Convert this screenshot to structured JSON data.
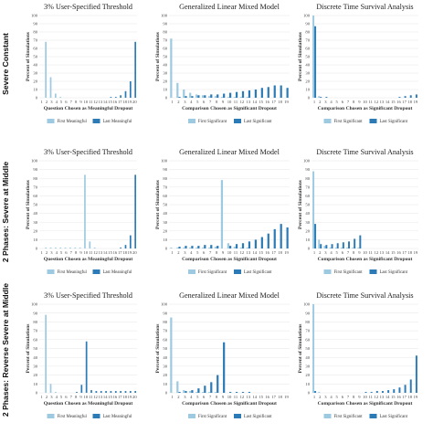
{
  "colors": {
    "first": "#9ecae1",
    "last": "#2c7bb6",
    "grid": "#e6e6e6"
  },
  "rows": [
    "Severe Constant",
    "2 Phases: Severe at Middle",
    "2 Phases: Reverse Severe at Middle"
  ],
  "chart_data": [
    {
      "type": "bar",
      "title": "3% User-Specified Threshold",
      "xlabel": "Question Chosen as Meaningful Dropout",
      "ylabel": "Percent of Simulations",
      "categories": [
        "1",
        "2",
        "3",
        "4",
        "5",
        "6",
        "7",
        "8",
        "9",
        "10",
        "11",
        "12",
        "13",
        "14",
        "15",
        "16",
        "17",
        "18",
        "19",
        "20"
      ],
      "ylim": [
        0,
        100
      ],
      "yticks": [
        "0",
        "10",
        "20",
        "30",
        "40",
        "50",
        "60",
        "70",
        "80",
        "90",
        "100"
      ],
      "series": [
        {
          "name": "First Meaningful",
          "values": [
            0,
            68,
            25,
            5,
            1,
            0,
            0,
            0,
            0,
            0,
            0,
            0,
            0,
            0,
            0,
            0,
            0,
            0,
            0,
            0
          ]
        },
        {
          "name": "Last Meaningful",
          "values": [
            0,
            0,
            0,
            0,
            0,
            0,
            0,
            0,
            0,
            0,
            0,
            0,
            0,
            0,
            1,
            1,
            3,
            8,
            20,
            68
          ]
        }
      ]
    },
    {
      "type": "bar",
      "title": "Generalized Linear Mixed Model",
      "xlabel": "Comparison Chosen as Significant Dropout",
      "ylabel": "Percent of Simulations",
      "categories": [
        "1",
        "2",
        "3",
        "4",
        "5",
        "6",
        "7",
        "8",
        "9",
        "10",
        "11",
        "12",
        "13",
        "14",
        "15",
        "16",
        "17",
        "18",
        "19"
      ],
      "ylim": [
        0,
        100
      ],
      "yticks": [
        "0",
        "10",
        "20",
        "30",
        "40",
        "50",
        "60",
        "70",
        "80",
        "90",
        "100"
      ],
      "series": [
        {
          "name": "First Significant",
          "values": [
            72,
            18,
            10,
            6,
            4,
            3,
            2,
            2,
            1,
            1,
            1,
            1,
            1,
            0,
            0,
            0,
            0,
            0,
            0
          ]
        },
        {
          "name": "Last Significant",
          "values": [
            0,
            1,
            2,
            2,
            3,
            3,
            4,
            4,
            5,
            6,
            7,
            8,
            9,
            10,
            12,
            13,
            15,
            15,
            12
          ]
        }
      ]
    },
    {
      "type": "bar",
      "title": "Discrete Time Survival Analysis",
      "xlabel": "Comparison Chosen as Significant Dropout",
      "ylabel": "Percent of Simulations",
      "categories": [
        "1",
        "2",
        "3",
        "4",
        "5",
        "6",
        "7",
        "8",
        "9",
        "10",
        "11",
        "12",
        "13",
        "14",
        "15",
        "16",
        "17",
        "18",
        "19"
      ],
      "ylim": [
        0,
        100
      ],
      "yticks": [
        "0",
        "10",
        "20",
        "30",
        "40",
        "50",
        "60",
        "70",
        "80",
        "90",
        "100"
      ],
      "series": [
        {
          "name": "First Significant",
          "values": [
            100,
            2,
            0,
            0,
            0,
            0,
            0,
            0,
            0,
            0,
            0,
            0,
            0,
            0,
            0,
            0,
            0,
            0,
            0
          ]
        },
        {
          "name": "Last Significant",
          "values": [
            87,
            1,
            1,
            0,
            0,
            0,
            0,
            0,
            0,
            0,
            0,
            0,
            0,
            0,
            0,
            1,
            2,
            3,
            4
          ]
        }
      ]
    },
    {
      "type": "bar",
      "title": "3% User-Specified Threshold",
      "xlabel": "Question Chosen as Meaningful Dropout",
      "ylabel": "Percent of Simulations",
      "categories": [
        "1",
        "2",
        "3",
        "4",
        "5",
        "6",
        "7",
        "8",
        "9",
        "10",
        "11",
        "12",
        "13",
        "14",
        "15",
        "16",
        "17",
        "18",
        "19",
        "20"
      ],
      "ylim": [
        0,
        100
      ],
      "yticks": [
        "0",
        "10",
        "20",
        "30",
        "40",
        "50",
        "60",
        "70",
        "80",
        "90",
        "100"
      ],
      "series": [
        {
          "name": "First Meaningful",
          "values": [
            0,
            1,
            1,
            1,
            1,
            1,
            1,
            1,
            1,
            84,
            8,
            1,
            0,
            0,
            0,
            0,
            0,
            0,
            0,
            0
          ]
        },
        {
          "name": "Last Meaningful",
          "values": [
            0,
            0,
            0,
            0,
            0,
            0,
            0,
            0,
            0,
            0,
            0,
            0,
            0,
            0,
            0,
            0,
            1,
            4,
            15,
            84
          ]
        }
      ]
    },
    {
      "type": "bar",
      "title": "Generalized Linear Mixed Model",
      "xlabel": "Comparison Chosen as Significant Dropout",
      "ylabel": "Percent of Simulations",
      "categories": [
        "1",
        "2",
        "3",
        "4",
        "5",
        "6",
        "7",
        "8",
        "9",
        "10",
        "11",
        "12",
        "13",
        "14",
        "15",
        "16",
        "17",
        "18",
        "19"
      ],
      "ylim": [
        0,
        100
      ],
      "yticks": [
        "0",
        "10",
        "20",
        "30",
        "40",
        "50",
        "60",
        "70",
        "80",
        "90",
        "100"
      ],
      "series": [
        {
          "name": "First Significant",
          "values": [
            1,
            1,
            1,
            1,
            1,
            1,
            1,
            2,
            78,
            6,
            2,
            1,
            1,
            0,
            0,
            0,
            0,
            0,
            0
          ]
        },
        {
          "name": "Last Significant",
          "values": [
            0,
            2,
            3,
            3,
            3,
            4,
            4,
            3,
            0,
            3,
            5,
            6,
            8,
            10,
            13,
            17,
            22,
            28,
            24
          ]
        }
      ]
    },
    {
      "type": "bar",
      "title": "Discrete Time Survival Analysis",
      "xlabel": "Comparison Chosen as Significant Dropout",
      "ylabel": "Percent of Simulations",
      "categories": [
        "1",
        "2",
        "3",
        "4",
        "5",
        "6",
        "7",
        "8",
        "9",
        "10",
        "11",
        "12",
        "13",
        "14",
        "15",
        "16",
        "17",
        "18",
        "19"
      ],
      "ylim": [
        0,
        100
      ],
      "yticks": [
        "0",
        "10",
        "20",
        "30",
        "40",
        "50",
        "60",
        "70",
        "80",
        "90",
        "100"
      ],
      "series": [
        {
          "name": "First Significant",
          "values": [
            88,
            10,
            3,
            1,
            1,
            1,
            1,
            1,
            1,
            0,
            0,
            0,
            0,
            0,
            0,
            0,
            0,
            0,
            0
          ]
        },
        {
          "name": "Last Significant",
          "values": [
            28,
            5,
            4,
            5,
            6,
            7,
            8,
            11,
            15,
            0,
            0,
            0,
            0,
            0,
            0,
            0,
            0,
            0,
            0
          ]
        }
      ]
    },
    {
      "type": "bar",
      "title": "3% User-Specified Threshold",
      "xlabel": "Question Chosen as Meaningful Dropout",
      "ylabel": "Percent of Simulations",
      "categories": [
        "1",
        "2",
        "3",
        "4",
        "5",
        "6",
        "7",
        "8",
        "9",
        "10",
        "11",
        "12",
        "13",
        "14",
        "15",
        "16",
        "17",
        "18",
        "19",
        "20"
      ],
      "ylim": [
        0,
        100
      ],
      "yticks": [
        "0",
        "10",
        "20",
        "30",
        "40",
        "50",
        "60",
        "70",
        "80",
        "90",
        "100"
      ],
      "series": [
        {
          "name": "First Meaningful",
          "values": [
            0,
            88,
            10,
            1,
            0,
            0,
            0,
            0,
            0,
            0,
            0,
            0,
            0,
            0,
            0,
            0,
            0,
            0,
            0,
            0
          ]
        },
        {
          "name": "Last Meaningful",
          "values": [
            0,
            0,
            0,
            0,
            0,
            0,
            0,
            1,
            9,
            58,
            3,
            2,
            2,
            2,
            2,
            2,
            2,
            2,
            2,
            2
          ]
        }
      ]
    },
    {
      "type": "bar",
      "title": "Generalized Linear Mixed Model",
      "xlabel": "Comparison Chosen as Significant Dropout",
      "ylabel": "Percent of Simulations",
      "categories": [
        "1",
        "2",
        "3",
        "4",
        "5",
        "6",
        "7",
        "8",
        "9",
        "10",
        "11",
        "12",
        "13",
        "14",
        "15",
        "16",
        "17",
        "18",
        "19"
      ],
      "ylim": [
        0,
        100
      ],
      "yticks": [
        "0",
        "10",
        "20",
        "30",
        "40",
        "50",
        "60",
        "70",
        "80",
        "90",
        "100"
      ],
      "series": [
        {
          "name": "First Significant",
          "values": [
            85,
            13,
            3,
            2,
            1,
            1,
            1,
            1,
            0,
            0,
            0,
            0,
            0,
            0,
            0,
            0,
            0,
            0,
            0
          ]
        },
        {
          "name": "Last Significant",
          "values": [
            0,
            1,
            2,
            3,
            5,
            8,
            12,
            20,
            57,
            1,
            1,
            1,
            1,
            0,
            0,
            0,
            0,
            0,
            0
          ]
        }
      ]
    },
    {
      "type": "bar",
      "title": "Discrete Time Survival Analysis",
      "xlabel": "Comparison Chosen as Significant Dropout",
      "ylabel": "Percent of Simulations",
      "categories": [
        "1",
        "2",
        "3",
        "4",
        "5",
        "6",
        "7",
        "8",
        "9",
        "10",
        "11",
        "12",
        "13",
        "14",
        "15",
        "16",
        "17",
        "18",
        "19"
      ],
      "ylim": [
        0,
        100
      ],
      "yticks": [
        "0",
        "10",
        "20",
        "30",
        "40",
        "50",
        "60",
        "70",
        "80",
        "90",
        "100"
      ],
      "series": [
        {
          "name": "First Significant",
          "values": [
            100,
            1,
            0,
            0,
            0,
            0,
            0,
            0,
            0,
            0,
            0,
            0,
            0,
            0,
            0,
            0,
            0,
            0,
            0
          ]
        },
        {
          "name": "Last Significant",
          "values": [
            2,
            0,
            0,
            0,
            0,
            0,
            0,
            0,
            0,
            1,
            1,
            2,
            2,
            3,
            4,
            6,
            9,
            15,
            42
          ]
        }
      ]
    }
  ]
}
